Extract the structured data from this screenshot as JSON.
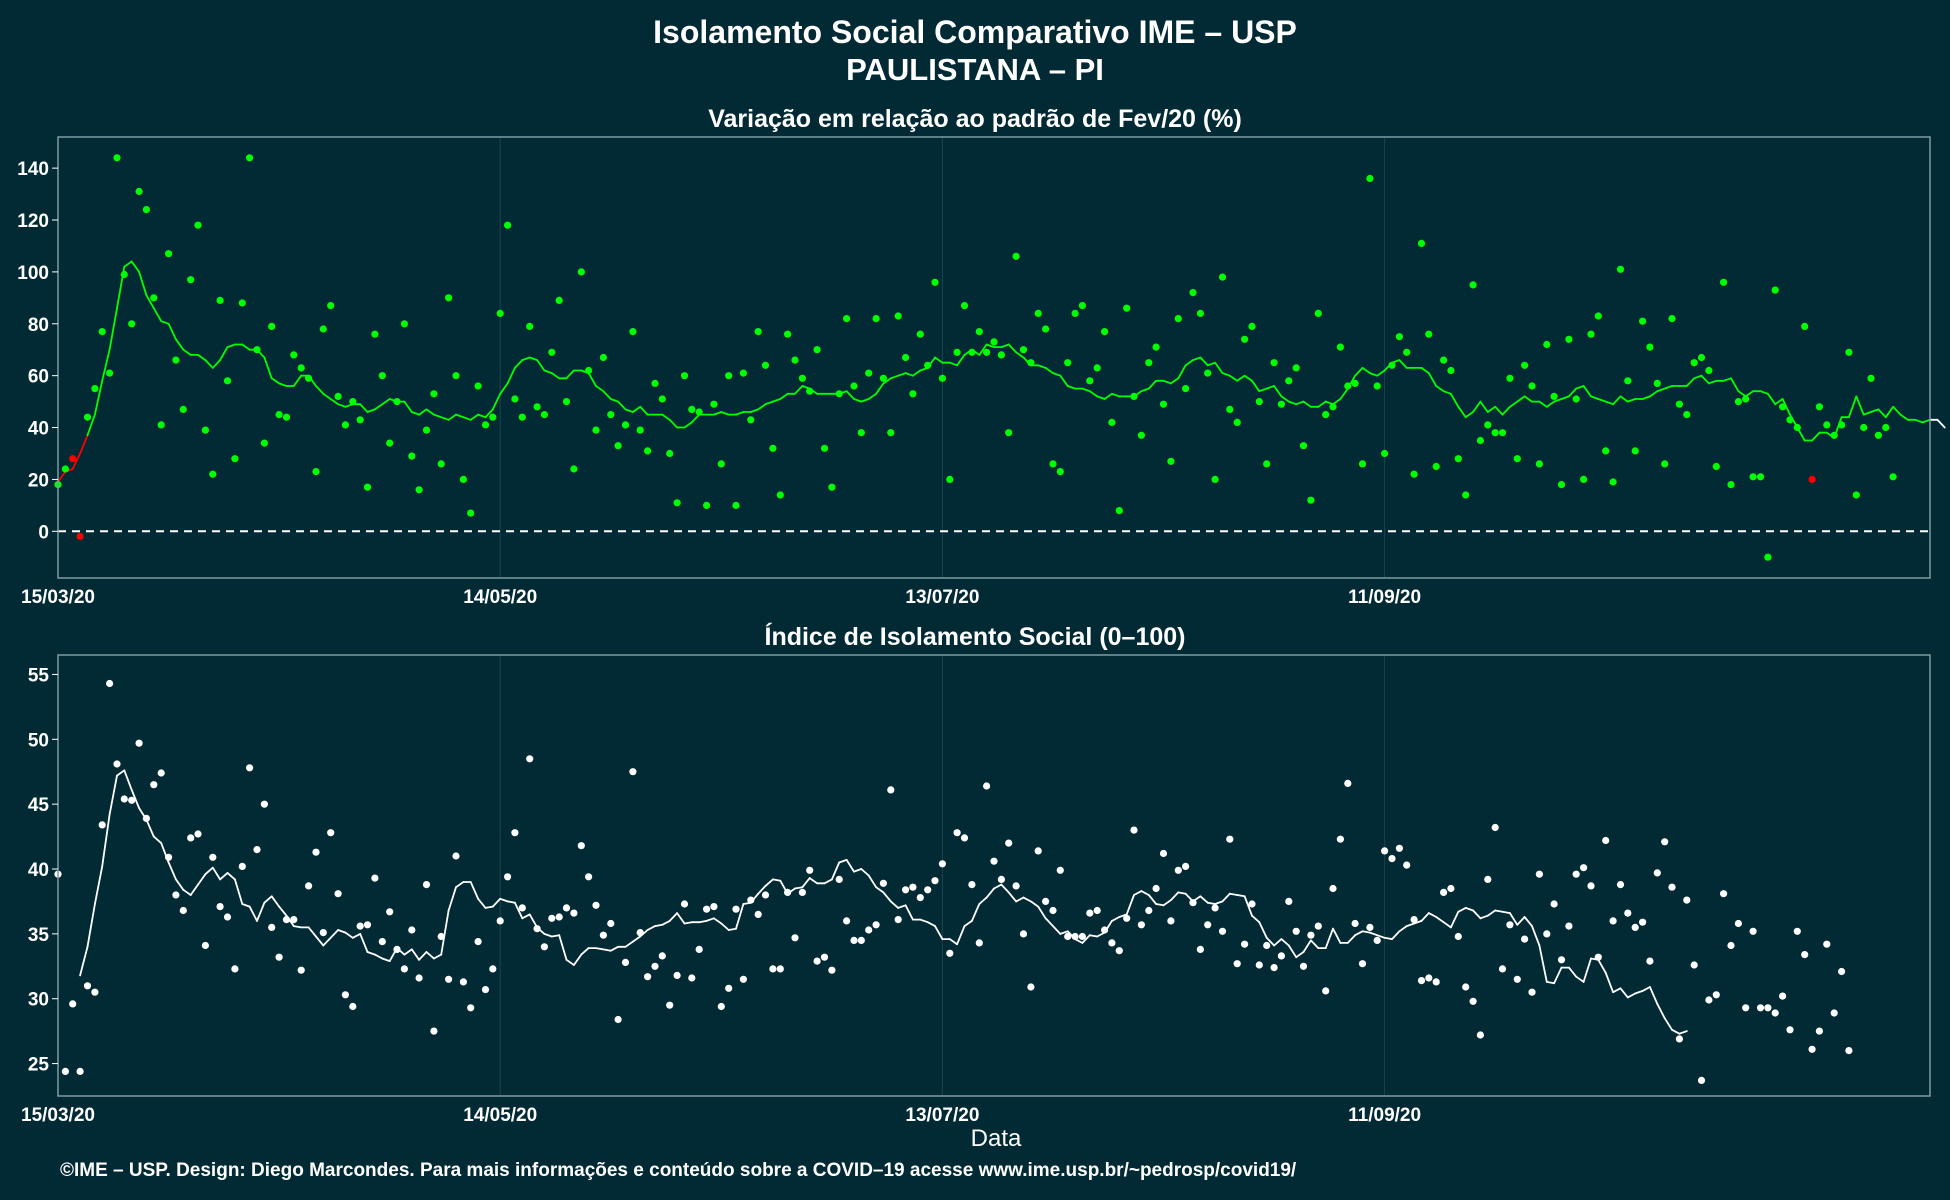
{
  "figure": {
    "title": "Isolamento Social Comparativo IME – USP",
    "subtitle": "PAULISTANA – PI",
    "xlabel": "Data",
    "footer": "©IME – USP. Design: Diego Marcondes. Para mais informações e conteúdo sobre a COVID–19 acesse www.ime.usp.br/~pedrosp/covid19/"
  },
  "colors": {
    "background": "#022a35",
    "panel_border": "#7f9aa2",
    "grid": "#1b4450",
    "green": "#00ff00",
    "red": "#ff0000",
    "white": "#ffffff"
  },
  "chart_data": [
    {
      "type": "scatter",
      "title": "Variação em relação ao padrão de Fev/20 (%)",
      "xlim": [
        "2020-03-15",
        "2020-11-24"
      ],
      "ylim": [
        -18,
        152
      ],
      "x_ticks": [
        "15/03/20",
        "14/05/20",
        "13/07/20",
        "11/09/20"
      ],
      "x_tick_dates": [
        "2020-03-15",
        "2020-05-14",
        "2020-07-13",
        "2020-09-11"
      ],
      "y_ticks": [
        0,
        20,
        40,
        60,
        80,
        100,
        120,
        140
      ],
      "reference_line": 0,
      "start_date": "2020-03-15",
      "values": [
        18,
        24,
        28,
        -2,
        44,
        55,
        77,
        61,
        144,
        99,
        80,
        131,
        124,
        90,
        41,
        107,
        66,
        47,
        97,
        118,
        39,
        22,
        89,
        58,
        28,
        88,
        144,
        70,
        34,
        79,
        45,
        44,
        68,
        63,
        59,
        23,
        78,
        87,
        52,
        41,
        50,
        43,
        17,
        76,
        60,
        34,
        50,
        80,
        29,
        16,
        39,
        53,
        26,
        90,
        60,
        20,
        7,
        56,
        41,
        44,
        84,
        118,
        51,
        44,
        79,
        48,
        45,
        69,
        89,
        50,
        24,
        100,
        62,
        39,
        67,
        45,
        33,
        41,
        77,
        39,
        31,
        57,
        51,
        30,
        11,
        60,
        47,
        46,
        10,
        49,
        26,
        60,
        10,
        61,
        43,
        77,
        64,
        32,
        14,
        76,
        66,
        59,
        54,
        70,
        32,
        17,
        53,
        82,
        56,
        38,
        61,
        82,
        59,
        38,
        83,
        67,
        53,
        76,
        64,
        96,
        59,
        20,
        69,
        87,
        69,
        77,
        69,
        73,
        68,
        38,
        106,
        70,
        65,
        84,
        78,
        26,
        23,
        65,
        84,
        87,
        58,
        63,
        77,
        42,
        8,
        86,
        52,
        37,
        65,
        71,
        49,
        27,
        82,
        55,
        92,
        84,
        61,
        20,
        98,
        47,
        42,
        74,
        79,
        50,
        26,
        65,
        49,
        58,
        63,
        33,
        12,
        84,
        45,
        48,
        71,
        56,
        57,
        26,
        136,
        56,
        30,
        64,
        75,
        69,
        22,
        111,
        76,
        25,
        66,
        62,
        28,
        14,
        95,
        35,
        41,
        38,
        38,
        59,
        28,
        64,
        56,
        26,
        72,
        52,
        18,
        74,
        51,
        20,
        76,
        83,
        31,
        19,
        101,
        58,
        31,
        81,
        71,
        57,
        26,
        82,
        49,
        45,
        65,
        67,
        62,
        25,
        96,
        18,
        50,
        51,
        21,
        21,
        -10,
        93,
        48,
        43,
        40,
        79,
        20,
        48,
        41,
        37,
        41,
        69,
        14,
        40,
        59,
        37,
        40,
        21
      ],
      "red_indices": [
        2,
        3,
        238
      ],
      "moving_average": [
        19,
        23,
        24,
        30,
        37,
        45,
        58,
        70,
        86,
        102,
        104,
        100,
        91,
        86,
        81,
        80,
        74,
        70,
        68,
        68,
        66,
        63,
        66,
        71,
        72,
        72,
        70,
        70,
        67,
        59,
        57,
        56,
        56,
        60,
        60,
        56,
        53,
        51,
        49,
        48,
        49,
        49,
        46,
        47,
        49,
        51,
        50,
        50,
        46,
        45,
        47,
        45,
        44,
        43,
        45,
        44,
        43,
        45,
        44,
        47,
        53,
        57,
        63,
        66,
        67,
        66,
        62,
        61,
        59,
        59,
        62,
        62,
        61,
        56,
        54,
        51,
        50,
        47,
        46,
        48,
        45,
        45,
        45,
        43,
        40,
        40,
        42,
        45,
        45,
        45,
        46,
        45,
        45,
        46,
        46,
        47,
        49,
        50,
        51,
        53,
        53,
        56,
        55,
        53,
        53,
        53,
        53,
        54,
        51,
        50,
        51,
        53,
        57,
        59,
        60,
        61,
        60,
        62,
        63,
        67,
        65,
        65,
        64,
        68,
        70,
        68,
        72,
        71,
        71,
        72,
        69,
        67,
        64,
        64,
        63,
        61,
        60,
        56,
        55,
        55,
        54,
        52,
        51,
        53,
        52,
        52,
        52,
        54,
        55,
        58,
        58,
        57,
        59,
        64,
        66,
        67,
        64,
        65,
        61,
        60,
        58,
        60,
        58,
        54,
        55,
        56,
        52,
        50,
        49,
        50,
        48,
        48,
        50,
        49,
        51,
        55,
        60,
        63,
        61,
        60,
        62,
        65,
        66,
        63,
        63,
        63,
        61,
        56,
        54,
        53,
        48,
        44,
        46,
        50,
        46,
        48,
        45,
        48,
        50,
        52,
        50,
        50,
        48,
        50,
        51,
        52,
        55,
        56,
        52,
        51,
        50,
        49,
        52,
        50,
        51,
        51,
        52,
        54,
        55,
        56,
        56,
        56,
        59,
        60,
        57,
        58,
        58,
        59,
        54,
        52,
        54,
        54,
        53,
        49,
        51,
        45,
        40,
        35,
        35,
        38,
        38,
        36,
        44,
        44,
        52,
        45,
        46,
        47,
        44,
        48,
        45,
        43,
        43,
        42,
        43,
        43,
        40
      ]
    },
    {
      "type": "scatter",
      "title": "Índice de Isolamento Social (0–100)",
      "xlim": [
        "2020-03-15",
        "2020-11-24"
      ],
      "ylim": [
        22.5,
        56.5
      ],
      "x_ticks": [
        "15/03/20",
        "14/05/20",
        "13/07/20",
        "11/09/20"
      ],
      "x_tick_dates": [
        "2020-03-15",
        "2020-05-14",
        "2020-07-13",
        "2020-09-11"
      ],
      "y_ticks": [
        25,
        30,
        35,
        40,
        45,
        50,
        55
      ],
      "start_date": "2020-03-15",
      "values": [
        39.6,
        24.4,
        29.6,
        24.4,
        31.0,
        30.5,
        43.4,
        54.3,
        48.1,
        45.4,
        45.3,
        49.7,
        43.9,
        46.5,
        47.4,
        40.9,
        38.0,
        36.8,
        42.4,
        42.7,
        34.1,
        40.9,
        37.1,
        36.3,
        32.3,
        40.2,
        47.8,
        41.5,
        45.0,
        35.5,
        33.2,
        36.1,
        36.1,
        32.2,
        38.7,
        41.3,
        35.1,
        42.8,
        38.1,
        30.3,
        29.4,
        35.6,
        35.7,
        39.3,
        34.4,
        36.7,
        33.8,
        32.3,
        35.3,
        31.6,
        38.8,
        27.5,
        34.8,
        31.5,
        41.0,
        31.3,
        29.3,
        34.4,
        30.7,
        32.3,
        36.0,
        39.4,
        42.8,
        37.0,
        48.5,
        35.4,
        34.0,
        36.2,
        36.3,
        37.0,
        36.6,
        41.8,
        39.4,
        37.2,
        34.9,
        35.8,
        28.4,
        32.8,
        47.5,
        35.1,
        31.7,
        32.5,
        33.3,
        29.5,
        31.8,
        37.3,
        31.6,
        33.8,
        36.9,
        37.1,
        29.4,
        30.8,
        36.9,
        31.5,
        37.6,
        36.5,
        38.0,
        32.3,
        32.3,
        38.2,
        34.7,
        38.2,
        39.9,
        32.9,
        33.2,
        32.2,
        39.2,
        36.0,
        34.5,
        34.5,
        35.3,
        35.7,
        38.9,
        46.1,
        36.1,
        38.4,
        38.6,
        37.8,
        38.4,
        39.1,
        40.4,
        33.5,
        42.8,
        42.4,
        38.8,
        34.3,
        46.4,
        40.6,
        39.2,
        42.0,
        38.7,
        35.0,
        30.9,
        41.4,
        37.5,
        36.8,
        39.9,
        34.8,
        34.8,
        34.8,
        36.6,
        36.8,
        35.3,
        34.3,
        33.7,
        36.2,
        43.0,
        35.7,
        36.8,
        38.5,
        41.2,
        36.0,
        39.9,
        40.2,
        37.4,
        33.8,
        35.7,
        37.0,
        35.2,
        42.3,
        32.7,
        34.2,
        37.3,
        32.6,
        34.1,
        32.4,
        33.3,
        37.5,
        35.2,
        32.5,
        34.9,
        35.6,
        30.6,
        38.5,
        42.3,
        46.6,
        35.8,
        32.7,
        35.5,
        34.5,
        41.4,
        40.8,
        41.6,
        40.3,
        36.1,
        31.4,
        31.6,
        31.3,
        38.2,
        38.5,
        34.8,
        30.9,
        29.8,
        27.2,
        39.2,
        43.2,
        32.3,
        35.7,
        31.5,
        34.6,
        30.5,
        39.6,
        35.0,
        37.3,
        33.0,
        35.6,
        39.6,
        40.1,
        38.7,
        33.2,
        42.2,
        36.0,
        38.8,
        36.6,
        35.5,
        35.9,
        32.9,
        39.7,
        42.1,
        38.6,
        26.9,
        37.6,
        32.6,
        23.7,
        29.9,
        30.3,
        38.1,
        34.1,
        35.8,
        29.3,
        35.2,
        29.3,
        29.3,
        28.9,
        30.2,
        27.6,
        35.2,
        33.4,
        26.1,
        27.5,
        34.2,
        28.9,
        32.1,
        26.0
      ],
      "moving_average": [
        null,
        null,
        null,
        31.8,
        34.0,
        37.3,
        40.2,
        44.2,
        47.2,
        47.6,
        46.1,
        44.7,
        43.8,
        42.5,
        42.0,
        40.5,
        39.2,
        38.4,
        38.0,
        38.8,
        39.6,
        40.1,
        39.2,
        39.7,
        39.2,
        37.3,
        37.1,
        36.0,
        37.4,
        37.9,
        37.1,
        36.4,
        35.6,
        35.5,
        35.5,
        34.8,
        34.1,
        34.7,
        35.3,
        35.1,
        34.7,
        35.0,
        33.6,
        33.4,
        33.1,
        32.9,
        33.9,
        33.4,
        33.8,
        33.0,
        33.6,
        33.1,
        33.4,
        36.8,
        38.6,
        39.0,
        39.0,
        37.7,
        37.0,
        37.1,
        37.7,
        37.5,
        37.4,
        36.2,
        36.5,
        35.5,
        35.0,
        34.8,
        34.9,
        33.0,
        32.6,
        33.4,
        33.9,
        33.9,
        33.8,
        33.7,
        34.0,
        34.0,
        34.4,
        34.8,
        35.3,
        35.6,
        35.7,
        36.0,
        36.6,
        35.8,
        35.9,
        35.9,
        36.0,
        36.2,
        35.8,
        35.3,
        35.4,
        37.3,
        37.4,
        38.1,
        38.7,
        39.2,
        39.1,
        38.1,
        38.5,
        38.6,
        39.3,
        38.9,
        38.9,
        39.2,
        40.5,
        40.7,
        39.8,
        40.0,
        39.5,
        38.6,
        38.2,
        37.5,
        37.0,
        37.2,
        36.1,
        36.1,
        35.9,
        35.6,
        34.6,
        34.6,
        34.2,
        35.6,
        36.0,
        37.3,
        37.8,
        38.5,
        38.8,
        38.2,
        37.5,
        37.8,
        37.5,
        37.1,
        36.2,
        35.6,
        35.0,
        35.2,
        34.6,
        34.3,
        34.9,
        34.8,
        35.1,
        36.0,
        36.3,
        36.5,
        38.0,
        38.3,
        38.0,
        37.3,
        37.2,
        37.6,
        38.2,
        38.1,
        37.5,
        37.9,
        37.4,
        37.3,
        37.5,
        38.1,
        38.0,
        37.9,
        36.4,
        35.9,
        34.7,
        34.1,
        34.6,
        34.1,
        33.2,
        33.6,
        34.5,
        33.9,
        33.9,
        35.4,
        34.3,
        34.3,
        34.9,
        35.2,
        35.1,
        34.9,
        34.7,
        34.6,
        35.2,
        35.6,
        35.8,
        36.0,
        36.6,
        36.3,
        35.9,
        35.5,
        36.7,
        37.0,
        36.8,
        36.2,
        36.4,
        36.8,
        36.7,
        36.6,
        35.7,
        36.3,
        35.6,
        34.1,
        31.3,
        31.2,
        32.4,
        32.4,
        31.7,
        31.3,
        33.1,
        33.0,
        32.0,
        30.5,
        30.8,
        30.1,
        30.4,
        30.6,
        30.9,
        29.6,
        28.5,
        27.6,
        27.3,
        27.5
      ]
    }
  ]
}
